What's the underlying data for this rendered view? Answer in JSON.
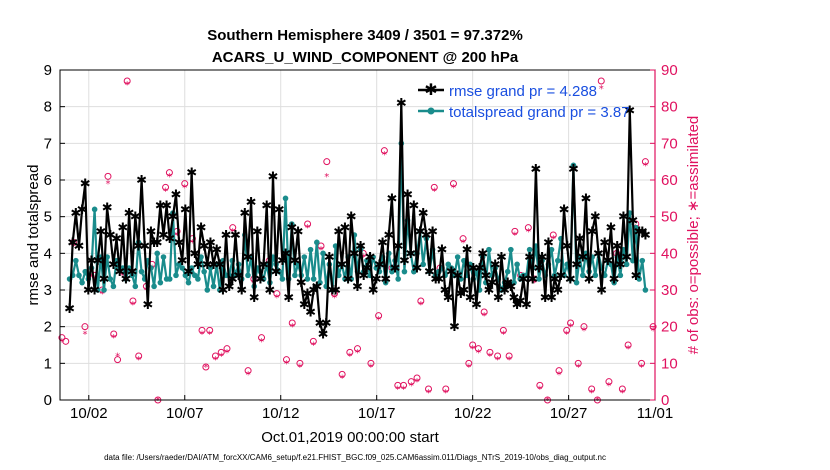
{
  "chart_data": {
    "type": "line",
    "title_line1": "Southern Hemisphere 3409 / 3501 = 97.372%",
    "title_line2": "ACARS_U_WIND_COMPONENT @ 200 hPa",
    "xlabel": "Oct.01,2019 00:00:00 start",
    "ylabel_left": "rmse and totalspread",
    "ylabel_right": "# of obs: o=possible; ∗=assimilated",
    "footer": "data file: /Users/raeder/DAI/ATM_forcXX/CAM6_setup/f.e21.FHIST_BGC.f09_025.CAM6assim.011/Diags_NTrS_2019-10/obs_diag_output.nc",
    "xlim": [
      0.5,
      31.5
    ],
    "ylim_left": [
      0,
      9
    ],
    "ylim_right": [
      0,
      90
    ],
    "x_ticks": [
      2,
      7,
      12,
      17,
      22,
      27,
      32
    ],
    "x_tick_labels": [
      "10/02",
      "10/07",
      "10/12",
      "10/17",
      "10/22",
      "10/27",
      "11/01"
    ],
    "y_ticks_left": [
      "0",
      "1",
      "2",
      "3",
      "4",
      "5",
      "6",
      "7",
      "8",
      "9"
    ],
    "y_ticks_right": [
      "0",
      "10",
      "20",
      "30",
      "40",
      "50",
      "60",
      "70",
      "80",
      "90"
    ],
    "colors": {
      "rmse": "#000000",
      "spread": "#1a8c8c",
      "obs": "#e0115f",
      "legend_text": "#1a4fe0",
      "right_axis": "#e0115f"
    },
    "series": [
      {
        "name": "rmse",
        "legend": "rmse grand pr = 4.288",
        "values": [
          2.5,
          4.3,
          5.1,
          4.2,
          5.2,
          5.9,
          3.0,
          3.8,
          3.0,
          3.8,
          4.6,
          3.3,
          5.25,
          4.5,
          3.7,
          4.4,
          3.5,
          4.7,
          3.3,
          5.1,
          3.5,
          5.0,
          4.2,
          6.0,
          4.2,
          2.6,
          4.6,
          4.3,
          4.3,
          5.3,
          4.5,
          5.3,
          4.4,
          5.0,
          5.6,
          4.3,
          3.8,
          5.2,
          3.5,
          6.2,
          4.0,
          3.7,
          4.7,
          4.2,
          3.7,
          4.3,
          3.7,
          4.1,
          3.7,
          3.0,
          4.5,
          3.1,
          3.3,
          4.5,
          3.4,
          3.0,
          5.1,
          3.9,
          5.4,
          2.8,
          4.6,
          3.3,
          3.7,
          5.3,
          3.0,
          6.1,
          3.5,
          5.2,
          3.8,
          4.0,
          2.8,
          4.7,
          3.8,
          4.6,
          3.2,
          2.6,
          2.9,
          2.4,
          3.0,
          3.1,
          2.1,
          1.8,
          2.1,
          3.9,
          3.0,
          3.0,
          4.6,
          3.7,
          4.7,
          3.3,
          5.0,
          4.0,
          3.1,
          4.2,
          3.4,
          3.6,
          3.9,
          3.0,
          3.3,
          3.7,
          4.3,
          3.3,
          4.5,
          5.5,
          3.6,
          4.2,
          8.1,
          3.8,
          5.6,
          4.0,
          5.3,
          3.6,
          4.6,
          5.1,
          4.5,
          3.5,
          4.6,
          3.3,
          3.3,
          4.1,
          3.0,
          2.8,
          3.5,
          2.0,
          3.4,
          2.9,
          3.0,
          4.1,
          2.8,
          3.6,
          2.6,
          3.6,
          4.0,
          3.4,
          3.0,
          3.2,
          3.7,
          2.8,
          3.9,
          3.0,
          3.2,
          3.1,
          2.8,
          2.6,
          2.7,
          3.3,
          2.6,
          3.9,
          3.3,
          6.3,
          3.6,
          3.9,
          2.8,
          4.3,
          2.8,
          3.3,
          3.0,
          3.4,
          5.2,
          4.2,
          3.3,
          6.3,
          3.7,
          4.4,
          3.9,
          5.5,
          3.3,
          4.6,
          5.0,
          4.0,
          3.0,
          4.3,
          3.8,
          4.7,
          3.3,
          4.2,
          3.7,
          5.0,
          3.9,
          7.9,
          4.9,
          3.4,
          4.6,
          4.6,
          4.5
        ]
      },
      {
        "name": "totalspread",
        "legend": "totalspread grand pr = 3.87",
        "values": [
          3.3,
          3.4,
          3.8,
          3.4,
          3.2,
          3.5,
          3.3,
          3.6,
          5.2,
          3.0,
          3.9,
          3.0,
          3.9,
          3.3,
          3.1,
          3.8,
          3.6,
          3.6,
          3.3,
          3.6,
          3.4,
          3.1,
          4.3,
          3.5,
          3.3,
          3.8,
          3.6,
          3.1,
          4.0,
          3.2,
          3.9,
          3.3,
          3.3,
          5.1,
          3.4,
          3.7,
          3.6,
          3.4,
          3.2,
          3.6,
          3.4,
          3.3,
          3.9,
          3.5,
          3.0,
          3.6,
          3.1,
          3.7,
          3.0,
          3.8,
          3.4,
          3.4,
          3.8,
          3.4,
          3.7,
          3.3,
          4.5,
          3.4,
          3.9,
          3.1,
          3.6,
          3.5,
          3.3,
          3.7,
          3.2,
          3.9,
          3.7,
          3.5,
          3.3,
          5.5,
          3.3,
          4.8,
          3.4,
          3.7,
          3.4,
          3.9,
          3.3,
          4.1,
          3.3,
          4.3,
          3.2,
          4.0,
          3.1,
          3.7,
          3.0,
          4.2,
          3.4,
          3.7,
          3.3,
          3.9,
          3.3,
          4.5,
          3.5,
          4.1,
          3.5,
          3.8,
          3.4,
          3.9,
          3.6,
          3.5,
          3.9,
          3.2,
          4.0,
          3.5,
          3.8,
          3.3,
          7.0,
          3.5,
          4.9,
          4.0,
          3.5,
          4.0,
          4.6,
          3.7,
          4.4,
          3.5,
          4.1,
          3.4,
          3.5,
          3.6,
          3.4,
          3.7,
          3.6,
          3.4,
          3.9,
          3.3,
          3.8,
          3.4,
          3.7,
          3.3,
          3.5,
          3.0,
          3.9,
          3.2,
          4.1,
          3.4,
          3.6,
          3.3,
          3.0,
          3.2,
          3.5,
          4.1,
          3.2,
          3.7,
          3.3,
          3.4,
          3.4,
          4.1,
          3.6,
          4.2,
          3.3,
          3.8,
          3.4,
          3.7,
          4.1,
          3.4,
          3.8,
          4.4,
          3.4,
          3.7,
          3.3,
          6.4,
          3.2,
          3.9,
          3.4,
          4.0,
          3.5,
          3.9,
          3.4,
          4.0,
          3.6,
          3.4,
          3.8,
          3.7,
          3.2,
          3.9,
          3.4,
          4.1,
          3.7,
          5.1,
          3.8,
          4.7,
          3.3,
          3.8,
          3.0
        ]
      }
    ],
    "obs_possible": [
      [
        0.6,
        17
      ],
      [
        0.8,
        16
      ],
      [
        1.2,
        43
      ],
      [
        1.8,
        20
      ],
      [
        2.3,
        34
      ],
      [
        2.7,
        30
      ],
      [
        3.0,
        61
      ],
      [
        3.3,
        18
      ],
      [
        3.5,
        11
      ],
      [
        3.8,
        35
      ],
      [
        4.0,
        87
      ],
      [
        4.3,
        27
      ],
      [
        4.6,
        12
      ],
      [
        5.0,
        31
      ],
      [
        5.3,
        37
      ],
      [
        5.6,
        0
      ],
      [
        6.0,
        58
      ],
      [
        6.2,
        62
      ],
      [
        6.6,
        46
      ],
      [
        7.0,
        59
      ],
      [
        7.4,
        44
      ],
      [
        7.9,
        19
      ],
      [
        8.1,
        9
      ],
      [
        8.3,
        19
      ],
      [
        8.6,
        12
      ],
      [
        8.9,
        13
      ],
      [
        9.2,
        14
      ],
      [
        9.5,
        47
      ],
      [
        9.8,
        35
      ],
      [
        10.3,
        8
      ],
      [
        10.6,
        33
      ],
      [
        11.0,
        17
      ],
      [
        11.4,
        38
      ],
      [
        11.8,
        29
      ],
      [
        12.3,
        11
      ],
      [
        12.6,
        21
      ],
      [
        13.0,
        10
      ],
      [
        13.4,
        48
      ],
      [
        13.7,
        16
      ],
      [
        14.1,
        42
      ],
      [
        14.4,
        65
      ],
      [
        14.8,
        29
      ],
      [
        15.2,
        7
      ],
      [
        15.6,
        13
      ],
      [
        16.0,
        14
      ],
      [
        16.3,
        40
      ],
      [
        16.7,
        10
      ],
      [
        17.1,
        23
      ],
      [
        17.4,
        68
      ],
      [
        17.8,
        36
      ],
      [
        18.1,
        4
      ],
      [
        18.4,
        4
      ],
      [
        18.8,
        5
      ],
      [
        19.1,
        6
      ],
      [
        19.3,
        27
      ],
      [
        19.7,
        3
      ],
      [
        20.0,
        58
      ],
      [
        20.3,
        36
      ],
      [
        20.6,
        3
      ],
      [
        21.0,
        59
      ],
      [
        21.5,
        44
      ],
      [
        21.8,
        10
      ],
      [
        22.0,
        15
      ],
      [
        22.3,
        14
      ],
      [
        22.6,
        24
      ],
      [
        22.9,
        13
      ],
      [
        23.3,
        12
      ],
      [
        23.6,
        19
      ],
      [
        23.9,
        12
      ],
      [
        24.2,
        46
      ],
      [
        24.5,
        34
      ],
      [
        24.9,
        47
      ],
      [
        25.2,
        33
      ],
      [
        25.5,
        4
      ],
      [
        25.9,
        0
      ],
      [
        26.2,
        45
      ],
      [
        26.5,
        8
      ],
      [
        26.9,
        19
      ],
      [
        27.1,
        21
      ],
      [
        27.5,
        10
      ],
      [
        27.8,
        20
      ],
      [
        28.2,
        3
      ],
      [
        28.5,
        0
      ],
      [
        28.7,
        87
      ],
      [
        29.1,
        5
      ],
      [
        29.5,
        40
      ],
      [
        29.8,
        3
      ],
      [
        30.1,
        15
      ],
      [
        30.5,
        48
      ],
      [
        30.8,
        10
      ],
      [
        31.0,
        65
      ],
      [
        31.4,
        20
      ]
    ],
    "obs_assimilated": [
      [
        0.6,
        16
      ],
      [
        1.2,
        42
      ],
      [
        1.8,
        18
      ],
      [
        2.3,
        33
      ],
      [
        2.7,
        29
      ],
      [
        3.0,
        59
      ],
      [
        3.3,
        17
      ],
      [
        3.5,
        12
      ],
      [
        3.8,
        34
      ],
      [
        4.0,
        86
      ],
      [
        4.3,
        26
      ],
      [
        4.6,
        11
      ],
      [
        5.0,
        30
      ],
      [
        5.3,
        36
      ],
      [
        5.6,
        0
      ],
      [
        6.0,
        57
      ],
      [
        6.2,
        61
      ],
      [
        6.6,
        45
      ],
      [
        7.0,
        58
      ],
      [
        7.4,
        43
      ],
      [
        7.9,
        18
      ],
      [
        8.1,
        9
      ],
      [
        8.3,
        18
      ],
      [
        8.6,
        11
      ],
      [
        8.9,
        12
      ],
      [
        9.2,
        13
      ],
      [
        9.5,
        46
      ],
      [
        9.8,
        34
      ],
      [
        10.3,
        7
      ],
      [
        10.6,
        32
      ],
      [
        11.0,
        16
      ],
      [
        11.4,
        37
      ],
      [
        11.8,
        28
      ],
      [
        12.3,
        10
      ],
      [
        12.6,
        20
      ],
      [
        13.0,
        9
      ],
      [
        13.4,
        47
      ],
      [
        13.7,
        15
      ],
      [
        14.1,
        41
      ],
      [
        14.4,
        61
      ],
      [
        14.8,
        28
      ],
      [
        15.2,
        6
      ],
      [
        15.6,
        12
      ],
      [
        16.0,
        13
      ],
      [
        16.3,
        39
      ],
      [
        16.7,
        9
      ],
      [
        17.1,
        22
      ],
      [
        17.4,
        67
      ],
      [
        17.8,
        35
      ],
      [
        18.1,
        3
      ],
      [
        18.4,
        3
      ],
      [
        18.8,
        4
      ],
      [
        19.1,
        5
      ],
      [
        19.3,
        26
      ],
      [
        19.7,
        2
      ],
      [
        20.0,
        57
      ],
      [
        20.3,
        35
      ],
      [
        20.6,
        2
      ],
      [
        21.0,
        58
      ],
      [
        21.5,
        43
      ],
      [
        21.8,
        9
      ],
      [
        22.0,
        14
      ],
      [
        22.3,
        13
      ],
      [
        22.6,
        23
      ],
      [
        22.9,
        12
      ],
      [
        23.3,
        11
      ],
      [
        23.6,
        18
      ],
      [
        23.9,
        11
      ],
      [
        24.2,
        45
      ],
      [
        24.5,
        33
      ],
      [
        24.9,
        46
      ],
      [
        25.2,
        32
      ],
      [
        25.5,
        3
      ],
      [
        25.9,
        0
      ],
      [
        26.2,
        44
      ],
      [
        26.5,
        7
      ],
      [
        26.9,
        18
      ],
      [
        27.1,
        20
      ],
      [
        27.5,
        9
      ],
      [
        27.8,
        19
      ],
      [
        28.2,
        2
      ],
      [
        28.5,
        0
      ],
      [
        28.7,
        85
      ],
      [
        29.1,
        4
      ],
      [
        29.5,
        39
      ],
      [
        29.8,
        2
      ],
      [
        30.1,
        14
      ],
      [
        30.5,
        47
      ],
      [
        30.8,
        9
      ],
      [
        31.0,
        64
      ],
      [
        31.4,
        19
      ]
    ]
  }
}
